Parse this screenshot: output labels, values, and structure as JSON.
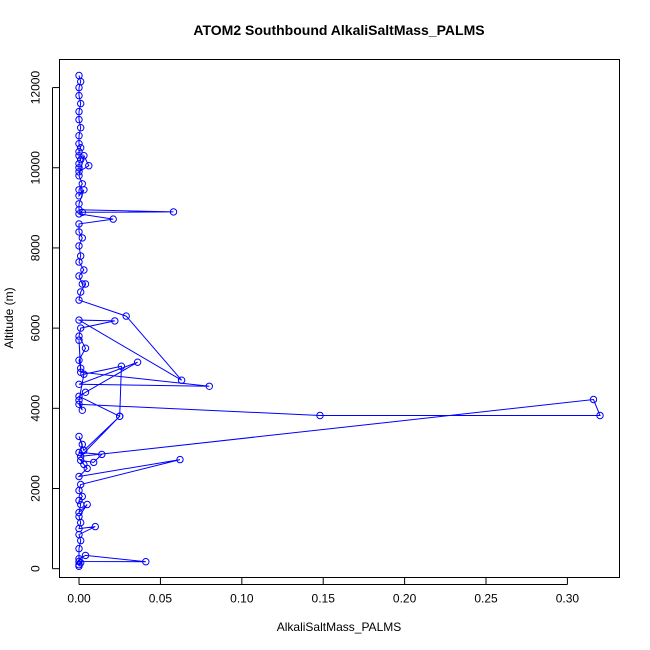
{
  "chart_data": {
    "type": "line",
    "title": "ATOM2 Southbound AlkaliSaltMass_PALMS",
    "xlabel": "AlkaliSaltMass_PALMS",
    "ylabel": "Altitude (m)",
    "xlim": [
      -0.012,
      0.332
    ],
    "ylim": [
      -220,
      12700
    ],
    "xticks": [
      0.0,
      0.05,
      0.1,
      0.15,
      0.2,
      0.25,
      0.3
    ],
    "xtick_labels": [
      "0.00",
      "0.05",
      "0.10",
      "0.15",
      "0.20",
      "0.25",
      "0.30"
    ],
    "yticks": [
      0,
      2000,
      4000,
      6000,
      8000,
      10000,
      12000
    ],
    "ytick_labels": [
      "0",
      "2000",
      "4000",
      "6000",
      "8000",
      "10000",
      "12000"
    ],
    "grid": false,
    "legend": "none",
    "marker": "open-circle",
    "color": "#0000ff",
    "series": [
      {
        "x": [
          0.0,
          0.001,
          0.0,
          0.0,
          0.001,
          0.0,
          0.0,
          0.001,
          0.0,
          0.0,
          0.001,
          0.0,
          0.0,
          0.001,
          0.0,
          0.0,
          0.0,
          0.006,
          0.003,
          0.0,
          0.002,
          0.0,
          0.0,
          0.003,
          0.0,
          0.0,
          0.058,
          0.002,
          0.0,
          0.021,
          0.0,
          0.0,
          0.002,
          0.0,
          0.001,
          0.0,
          0.003,
          0.0,
          0.002,
          0.004,
          0.001,
          0.0,
          0.029,
          0.063,
          0.0,
          0.022,
          0.001,
          0.0,
          0.004,
          0.0,
          0.001,
          0.0,
          0.001,
          0.08,
          0.0,
          0.036,
          0.004,
          0.0,
          0.025,
          0.026,
          0.003,
          0.0,
          0.002,
          0.0,
          0.148,
          0.32,
          0.316,
          0.001,
          0.025,
          0.003,
          0.0,
          0.002,
          0.0,
          0.014,
          0.009,
          0.001,
          0.003,
          0.005,
          0.0,
          0.062,
          0.001,
          0.0,
          0.002,
          0.0,
          0.001,
          0.0,
          0.005,
          0.0,
          0.001,
          0.0,
          0.01,
          0.0,
          0.001,
          0.0,
          0.0,
          0.041,
          0.004,
          0.0,
          0.001,
          0.0,
          0.0
        ],
        "y": [
          12300,
          12150,
          12000,
          11800,
          11600,
          11400,
          11200,
          11000,
          10800,
          10600,
          10500,
          10400,
          10300,
          10200,
          10100,
          10000,
          9900,
          10050,
          10300,
          9800,
          9600,
          9450,
          9300,
          9450,
          9100,
          8950,
          8900,
          8890,
          8850,
          8720,
          8600,
          8400,
          8250,
          8050,
          7800,
          7650,
          7450,
          7300,
          7100,
          7100,
          6900,
          6700,
          6300,
          4700,
          6200,
          6180,
          6000,
          5800,
          5500,
          5200,
          5000,
          5700,
          4900,
          4550,
          4600,
          5150,
          4400,
          4300,
          3800,
          5050,
          4850,
          4200,
          3950,
          4100,
          3820,
          3820,
          4220,
          2800,
          3800,
          2950,
          3300,
          3100,
          2900,
          2850,
          2650,
          2700,
          2600,
          2500,
          2300,
          2720,
          2100,
          1950,
          1800,
          1700,
          1600,
          1400,
          1600,
          1300,
          1150,
          1000,
          1050,
          850,
          700,
          500,
          180,
          175,
          330,
          250,
          150,
          100,
          60
        ]
      }
    ]
  }
}
